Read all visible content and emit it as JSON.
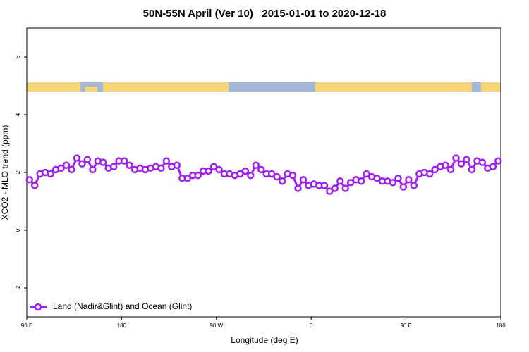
{
  "chart_data": {
    "type": "line",
    "title": "50N-55N April (Ver 10)   2015-01-01 to 2020-12-18",
    "xlabel": "Longitude (deg E)",
    "ylabel": "XCO2 - MLO trend (ppm)",
    "xlim": [
      90,
      540
    ],
    "ylim": [
      -3,
      7
    ],
    "xticks": [
      {
        "value": 90,
        "label": "90 E"
      },
      {
        "value": 180,
        "label": "180"
      },
      {
        "value": 270,
        "label": "90 W"
      },
      {
        "value": 360,
        "label": "0"
      },
      {
        "value": 450,
        "label": "90 E"
      },
      {
        "value": 540,
        "label": "180"
      }
    ],
    "yticks": [
      -2,
      0,
      2,
      4,
      6
    ],
    "legend": "bottom-left",
    "x": [
      92.5,
      97.5,
      102.5,
      107.5,
      112.5,
      117.5,
      122.5,
      127.5,
      132.5,
      137.5,
      142.5,
      147.5,
      152.5,
      157.5,
      162.5,
      167.5,
      172.5,
      177.5,
      182.5,
      187.5,
      192.5,
      197.5,
      202.5,
      207.5,
      212.5,
      217.5,
      222.5,
      227.5,
      232.5,
      237.5,
      242.5,
      247.5,
      252.5,
      257.5,
      262.5,
      267.5,
      272.5,
      277.5,
      282.5,
      287.5,
      292.5,
      297.5,
      302.5,
      307.5,
      312.5,
      317.5,
      322.5,
      327.5,
      332.5,
      337.5,
      342.5,
      347.5,
      352.5,
      357.5,
      362.5,
      367.5,
      372.5,
      377.5,
      382.5,
      387.5,
      392.5,
      397.5,
      402.5,
      407.5,
      412.5,
      417.5,
      422.5,
      427.5,
      432.5,
      437.5,
      442.5,
      447.5,
      452.5,
      457.5,
      462.5,
      467.5,
      472.5,
      477.5,
      482.5,
      487.5,
      492.5,
      497.5,
      502.5,
      507.5,
      512.5,
      517.5,
      522.5,
      527.5,
      532.5,
      537.5
    ],
    "series": [
      {
        "name": "Land (Nadir&Glint) and Ocean (Glint)",
        "color": "#a020f0",
        "values": [
          1.75,
          1.55,
          1.95,
          2.0,
          1.95,
          2.1,
          2.15,
          2.25,
          2.1,
          2.5,
          2.3,
          2.45,
          2.1,
          2.4,
          2.35,
          2.15,
          2.2,
          2.4,
          2.4,
          2.25,
          2.1,
          2.15,
          2.1,
          2.15,
          2.2,
          2.15,
          2.4,
          2.2,
          2.25,
          1.8,
          1.8,
          1.9,
          1.9,
          2.05,
          2.05,
          2.2,
          2.1,
          1.95,
          1.95,
          1.9,
          1.95,
          2.05,
          1.9,
          2.25,
          2.1,
          1.95,
          1.95,
          1.85,
          1.7,
          1.95,
          1.9,
          1.45,
          1.75,
          1.55,
          1.6,
          1.55,
          1.55,
          1.35,
          1.45,
          1.7,
          1.45,
          1.65,
          1.75,
          1.7,
          1.95,
          1.85,
          1.8,
          1.7,
          1.7,
          1.65,
          1.8,
          1.5,
          1.75,
          1.55,
          1.95,
          2.0,
          1.95,
          2.1,
          2.2,
          2.25,
          2.1,
          2.5,
          2.3,
          2.45,
          2.1,
          2.4,
          2.35,
          2.15,
          2.2,
          2.4
        ]
      }
    ]
  }
}
